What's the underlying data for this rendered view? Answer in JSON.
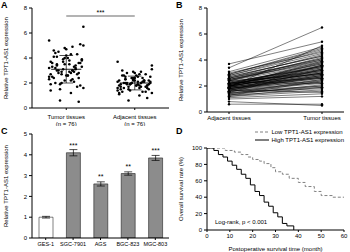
{
  "chart_data": [
    {
      "type": "scatter",
      "title": "A",
      "categories": [
        "Tumor tissues\n(n = 76)",
        "Adjacent tissues\n(n = 76)"
      ],
      "y_label": "Relative TPT1-AS1 expression",
      "ylim": [
        0,
        8
      ],
      "yticks": [
        0,
        2,
        4,
        6,
        8
      ],
      "color": "#000000",
      "marker": "circle",
      "values": [
        [
          3.2,
          2.8,
          4.1,
          3.6,
          2.2,
          1.9,
          3.0,
          4.5,
          5.1,
          2.6,
          3.3,
          2.9,
          1.5,
          3.8,
          4.0,
          2.4,
          3.1,
          2.7,
          6.5,
          3.5,
          2.0,
          4.3,
          3.9,
          2.5,
          1.2,
          3.4,
          2.8,
          4.8,
          3.7,
          2.3,
          3.0,
          1.8,
          4.2,
          3.6,
          2.1,
          0.6,
          3.3,
          2.6,
          4.6,
          3.2,
          2.9,
          1.6,
          3.8,
          4.4,
          2.7,
          3.1,
          5.4,
          2.2,
          3.5,
          2.4,
          4.0,
          1.4,
          3.0,
          2.8,
          3.6,
          4.7,
          2.5,
          3.3,
          1.9,
          3.9,
          2.6,
          4.1,
          3.4,
          2.0,
          5.0,
          2.9,
          3.2,
          1.7,
          3.7,
          2.3,
          4.3,
          3.0,
          0.5,
          3.5,
          2.7,
          4.9
        ],
        [
          2.1,
          1.8,
          2.5,
          1.6,
          2.3,
          1.2,
          2.0,
          2.8,
          1.9,
          2.2,
          1.5,
          2.4,
          1.7,
          2.0,
          2.6,
          1.3,
          2.2,
          1.9,
          3.4,
          2.1,
          1.6,
          2.7,
          2.0,
          1.4,
          1.0,
          2.3,
          1.8,
          2.9,
          2.2,
          1.7,
          2.0,
          1.5,
          2.4,
          1.9,
          1.3,
          0.6,
          2.1,
          1.8,
          3.0,
          2.2,
          1.9,
          1.2,
          2.5,
          2.6,
          1.7,
          2.0,
          3.7,
          1.6,
          2.3,
          1.8,
          2.4,
          1.1,
          2.0,
          1.9,
          2.2,
          2.8,
          1.7,
          2.1,
          1.5,
          2.5,
          1.8,
          2.6,
          2.1,
          1.4,
          3.1,
          1.9,
          2.0,
          1.3,
          2.4,
          1.6,
          2.7,
          2.0,
          0.8,
          2.2,
          1.8,
          2.9
        ]
      ],
      "mean": [
        3.1,
        2.0
      ],
      "sd": [
        1.1,
        0.55
      ],
      "annotations": [
        "***"
      ]
    },
    {
      "type": "line",
      "title": "B",
      "categories": [
        "Adjacent tissues",
        "Tumor tissues"
      ],
      "y_label": "Relative TPT1-AS1 expression",
      "ylim": [
        0,
        8
      ],
      "yticks": [
        0,
        2,
        4,
        6,
        8
      ],
      "color": "#000000",
      "marker": "circle",
      "values": [
        [
          2.1,
          3.2
        ],
        [
          1.8,
          2.8
        ],
        [
          2.5,
          4.1
        ],
        [
          1.6,
          3.6
        ],
        [
          2.3,
          2.2
        ],
        [
          1.2,
          1.9
        ],
        [
          2.0,
          3.0
        ],
        [
          2.8,
          4.5
        ],
        [
          1.9,
          5.1
        ],
        [
          2.2,
          2.6
        ],
        [
          1.5,
          3.3
        ],
        [
          2.4,
          2.9
        ],
        [
          1.7,
          1.5
        ],
        [
          2.0,
          3.8
        ],
        [
          2.6,
          4.0
        ],
        [
          1.3,
          2.4
        ],
        [
          2.2,
          3.1
        ],
        [
          1.9,
          2.7
        ],
        [
          3.4,
          6.5
        ],
        [
          2.1,
          3.5
        ],
        [
          1.6,
          2.0
        ],
        [
          2.7,
          4.3
        ],
        [
          2.0,
          3.9
        ],
        [
          1.4,
          2.5
        ],
        [
          1.0,
          1.2
        ],
        [
          2.3,
          3.4
        ],
        [
          1.8,
          2.8
        ],
        [
          2.9,
          4.8
        ],
        [
          2.2,
          3.7
        ],
        [
          1.7,
          2.3
        ],
        [
          2.0,
          3.0
        ],
        [
          1.5,
          1.8
        ],
        [
          2.4,
          4.2
        ],
        [
          1.9,
          3.6
        ],
        [
          1.3,
          2.1
        ],
        [
          0.6,
          0.6
        ],
        [
          2.1,
          3.3
        ],
        [
          1.8,
          2.6
        ],
        [
          3.0,
          4.6
        ],
        [
          2.2,
          3.2
        ],
        [
          1.9,
          2.9
        ],
        [
          1.2,
          1.6
        ],
        [
          2.5,
          3.8
        ],
        [
          2.6,
          4.4
        ],
        [
          1.7,
          2.7
        ],
        [
          2.0,
          3.1
        ],
        [
          3.7,
          5.4
        ],
        [
          1.6,
          2.2
        ],
        [
          2.3,
          3.5
        ],
        [
          1.8,
          2.4
        ],
        [
          2.4,
          4.0
        ],
        [
          1.1,
          1.4
        ],
        [
          2.0,
          3.0
        ],
        [
          1.9,
          2.8
        ],
        [
          2.2,
          3.6
        ],
        [
          2.8,
          4.7
        ],
        [
          1.7,
          2.5
        ],
        [
          2.1,
          3.3
        ],
        [
          1.5,
          1.9
        ],
        [
          2.5,
          3.9
        ],
        [
          1.8,
          2.6
        ],
        [
          2.6,
          4.1
        ],
        [
          2.1,
          3.4
        ],
        [
          1.4,
          2.0
        ],
        [
          3.1,
          5.0
        ],
        [
          1.9,
          2.9
        ],
        [
          2.0,
          3.2
        ],
        [
          1.3,
          1.7
        ],
        [
          2.4,
          3.7
        ],
        [
          1.6,
          2.3
        ],
        [
          2.7,
          4.3
        ],
        [
          2.0,
          3.0
        ],
        [
          0.8,
          0.5
        ],
        [
          2.2,
          3.5
        ],
        [
          1.8,
          2.7
        ],
        [
          2.9,
          4.9
        ]
      ]
    },
    {
      "type": "bar",
      "title": "C",
      "categories": [
        "GES-1",
        "SGC-7901",
        "AGS",
        "BGC-823",
        "MGC-803"
      ],
      "values": [
        1.0,
        4.1,
        2.6,
        3.1,
        3.85
      ],
      "error": [
        0.04,
        0.15,
        0.1,
        0.08,
        0.12
      ],
      "annotations": [
        null,
        "***",
        "**",
        "**",
        "***"
      ],
      "colors": [
        "#ffffff",
        "#8c8c8c",
        "#8c8c8c",
        "#8c8c8c",
        "#8c8c8c"
      ],
      "y_label": "Relative TPT1-AS1 expression",
      "ylim": [
        0,
        5
      ],
      "yticks": [
        0,
        1,
        2,
        3,
        4,
        5
      ]
    },
    {
      "type": "line",
      "title": "D",
      "x_label": "Postoperative survival time (month)",
      "y_label": "Overall survival rate (%)",
      "xlim": [
        0,
        60
      ],
      "xticks": [
        0,
        10,
        20,
        30,
        40,
        50,
        60
      ],
      "ylim": [
        0,
        100
      ],
      "yticks": [
        0,
        20,
        40,
        60,
        80,
        100
      ],
      "legend": "upper right",
      "annotations": [
        "Log-rank, p < 0.001"
      ],
      "series": [
        {
          "name": "Low TPT1-AS1 expression",
          "color": "#808080",
          "line_style": "dashed",
          "x": [
            0,
            8,
            12,
            15,
            18,
            20,
            23,
            25,
            28,
            30,
            33,
            36,
            40,
            43,
            47,
            50,
            55,
            60
          ],
          "values": [
            100,
            97,
            95,
            92,
            89,
            86,
            84,
            81,
            76,
            71,
            68,
            63,
            58,
            53,
            47,
            42,
            40,
            40
          ]
        },
        {
          "name": "High TPT1-AS1 expression",
          "color": "#000000",
          "line_style": "solid",
          "x": [
            0,
            3,
            5,
            7,
            9,
            11,
            13,
            15,
            17,
            19,
            21,
            23,
            25,
            27,
            29,
            31,
            33,
            35,
            38
          ],
          "values": [
            100,
            97,
            92,
            89,
            84,
            79,
            74,
            68,
            63,
            55,
            47,
            42,
            34,
            29,
            21,
            16,
            8,
            5,
            0
          ]
        }
      ]
    }
  ]
}
